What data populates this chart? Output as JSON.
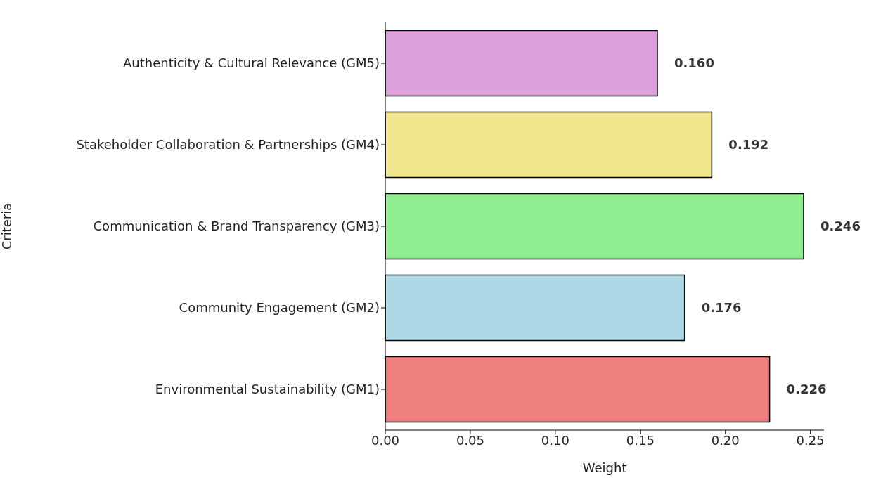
{
  "chart_data": {
    "type": "bar",
    "orientation": "horizontal",
    "xlabel": "Weight",
    "ylabel": "Criteria",
    "categories": [
      "Authenticity & Cultural Relevance (GM5)",
      "Stakeholder Collaboration & Partnerships (GM4)",
      "Communication & Brand Transparency (GM3)",
      "Community Engagement (GM2)",
      "Environmental Sustainability (GM1)"
    ],
    "values": [
      0.16,
      0.192,
      0.246,
      0.176,
      0.226
    ],
    "value_labels": [
      "0.160",
      "0.192",
      "0.246",
      "0.176",
      "0.226"
    ],
    "colors": [
      "#dda0dd",
      "#f0e68c",
      "#90ee90",
      "#add8e6",
      "#f08080"
    ],
    "xlim": [
      0,
      0.258
    ],
    "xticks": [
      {
        "value": 0,
        "label": "0.00"
      },
      {
        "value": 0.05,
        "label": "0.05"
      },
      {
        "value": 0.1,
        "label": "0.10"
      },
      {
        "value": 0.15,
        "label": "0.15"
      },
      {
        "value": 0.2,
        "label": "0.20"
      },
      {
        "value": 0.25,
        "label": "0.25"
      }
    ]
  }
}
